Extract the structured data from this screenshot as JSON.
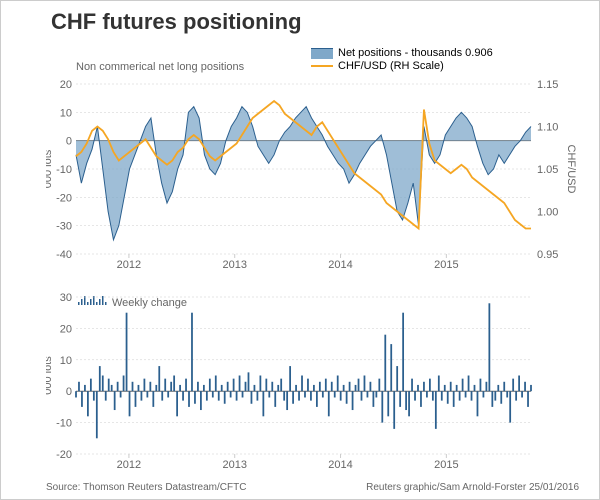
{
  "title": "CHF futures positioning",
  "subtitle": "Non commerical net long positions",
  "legend": {
    "net": "Net positions - thousands 0.906",
    "chf": "CHF/USD (RH Scale)"
  },
  "colors": {
    "area_fill": "#7fa8c9",
    "area_stroke": "#2b5f8e",
    "line": "#f5a623",
    "bar": "#2b5f8e",
    "grid": "#cccccc",
    "zero": "#666666",
    "text": "#666666",
    "title": "#333333",
    "bg": "#ffffff"
  },
  "top_chart": {
    "y_left_label": "000 lots",
    "y_right_label": "CHF/USD",
    "y_left_min": -40,
    "y_left_max": 20,
    "y_left_step": 10,
    "y_right_min": 0.95,
    "y_right_max": 1.15,
    "y_right_step": 0.05,
    "x_labels": [
      "2012",
      "2013",
      "2014",
      "2015"
    ],
    "net_positions": [
      -5,
      -15,
      -8,
      -3,
      5,
      -10,
      -25,
      -35,
      -30,
      -20,
      -10,
      -5,
      0,
      5,
      8,
      -5,
      -15,
      -22,
      -18,
      -10,
      -5,
      10,
      12,
      8,
      -5,
      -10,
      -12,
      -8,
      0,
      5,
      8,
      12,
      10,
      5,
      -2,
      -5,
      -8,
      -5,
      0,
      3,
      5,
      8,
      10,
      12,
      8,
      5,
      2,
      -2,
      -5,
      -8,
      -10,
      -15,
      -12,
      -8,
      -5,
      -2,
      0,
      2,
      -5,
      -15,
      -25,
      -28,
      -22,
      -15,
      -30,
      5,
      -5,
      -8,
      -5,
      2,
      5,
      8,
      10,
      8,
      5,
      -2,
      -8,
      -12,
      -10,
      -5,
      -8,
      -5,
      -2,
      0,
      3,
      5
    ],
    "chf_usd": [
      1.065,
      1.07,
      1.08,
      1.095,
      1.1,
      1.095,
      1.085,
      1.07,
      1.06,
      1.065,
      1.07,
      1.075,
      1.08,
      1.085,
      1.075,
      1.065,
      1.06,
      1.055,
      1.06,
      1.07,
      1.075,
      1.085,
      1.09,
      1.085,
      1.075,
      1.065,
      1.06,
      1.065,
      1.07,
      1.075,
      1.08,
      1.09,
      1.1,
      1.11,
      1.115,
      1.12,
      1.125,
      1.13,
      1.125,
      1.115,
      1.11,
      1.105,
      1.1,
      1.095,
      1.09,
      1.1,
      1.105,
      1.095,
      1.085,
      1.075,
      1.065,
      1.055,
      1.045,
      1.04,
      1.035,
      1.03,
      1.025,
      1.02,
      1.01,
      1.005,
      1.0,
      0.995,
      0.99,
      0.985,
      0.98,
      1.12,
      1.08,
      1.06,
      1.055,
      1.05,
      1.045,
      1.05,
      1.055,
      1.05,
      1.04,
      1.035,
      1.03,
      1.025,
      1.02,
      1.015,
      1.01,
      1.0,
      0.99,
      0.985,
      0.98,
      0.98
    ],
    "x_start": 2011.5,
    "x_end": 2015.8
  },
  "bottom_chart": {
    "label": "Weekly change",
    "y_label": "000 lots",
    "y_min": -20,
    "y_max": 30,
    "y_step": 10,
    "x_labels": [
      "2012",
      "2013",
      "2014",
      "2015"
    ],
    "values": [
      -2,
      3,
      -5,
      2,
      -8,
      4,
      -3,
      -15,
      8,
      5,
      -3,
      4,
      2,
      -6,
      3,
      -2,
      5,
      25,
      -8,
      3,
      -5,
      2,
      -3,
      4,
      -2,
      3,
      -5,
      2,
      8,
      -3,
      4,
      -2,
      3,
      5,
      -8,
      2,
      -3,
      4,
      -5,
      25,
      -4,
      3,
      -6,
      2,
      -3,
      4,
      -2,
      5,
      -3,
      2,
      -4,
      3,
      -2,
      4,
      -3,
      5,
      -2,
      3,
      6,
      -4,
      2,
      -3,
      5,
      -8,
      4,
      -2,
      3,
      -5,
      2,
      4,
      -3,
      -6,
      8,
      -4,
      2,
      -3,
      5,
      -2,
      4,
      -3,
      2,
      -5,
      3,
      -2,
      4,
      -8,
      3,
      -2,
      5,
      -3,
      2,
      -4,
      3,
      -6,
      2,
      4,
      -3,
      5,
      -2,
      3,
      -5,
      -2,
      4,
      -10,
      18,
      -8,
      15,
      -12,
      8,
      -5,
      25,
      -6,
      -8,
      4,
      -3,
      2,
      -5,
      3,
      -2,
      4,
      -3,
      -12,
      5,
      -3,
      2,
      -4,
      3,
      -5,
      2,
      -3,
      4,
      -2,
      5,
      -3,
      2,
      -8,
      4,
      -2,
      3,
      28,
      -5,
      -3,
      2,
      -4,
      3,
      -2,
      -10,
      4,
      -3,
      5,
      -2,
      3,
      -5,
      2
    ]
  },
  "footer": {
    "source": "Source: Thomson Reuters Datastream/CFTC",
    "credit": "Reuters graphic/Sam Arnold-Forster 25/01/2016"
  }
}
